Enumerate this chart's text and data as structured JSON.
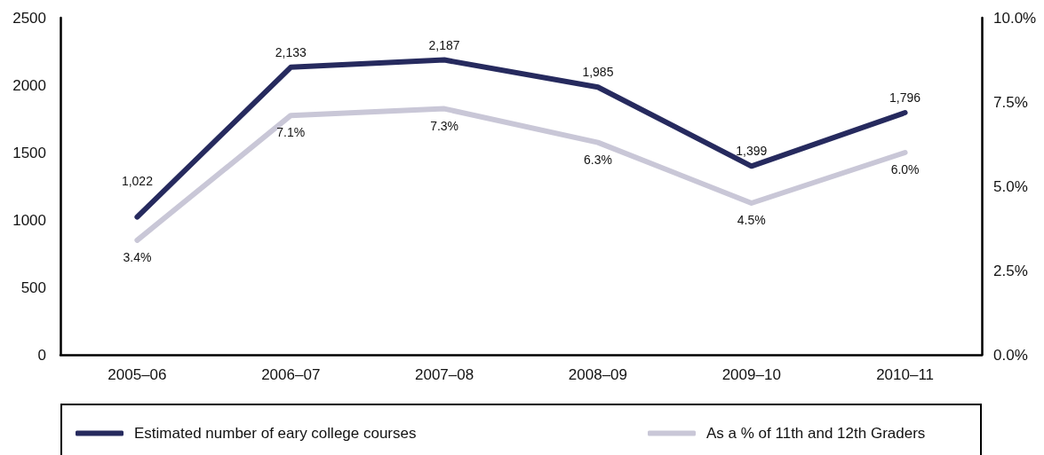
{
  "chart_data": {
    "type": "line",
    "categories": [
      "2005–06",
      "2006–07",
      "2007–08",
      "2008–09",
      "2009–10",
      "2010–11"
    ],
    "series": [
      {
        "name": "Estimated number of eary college courses",
        "color": "#262a5e",
        "values": [
          1022,
          2133,
          2187,
          1985,
          1399,
          1796
        ],
        "value_labels": [
          "1,022",
          "2,133",
          "2,187",
          "1,985",
          "1,399",
          "1,796"
        ]
      },
      {
        "name": "As a % of 11th and 12th Graders",
        "color": "#c9c7d7",
        "axis": "y2",
        "values": [
          3.4,
          7.1,
          7.3,
          6.3,
          4.5,
          6.0
        ],
        "value_labels": [
          "3.4%",
          "7.1%",
          "7.3%",
          "6.3%",
          "4.5%",
          "6.0%"
        ]
      }
    ],
    "ylim": [
      0,
      2500
    ],
    "yticks": [
      0,
      500,
      1000,
      1500,
      2000,
      2500
    ],
    "y2lim": [
      0,
      10
    ],
    "y2ticks": [
      {
        "value": 0,
        "label": "0.0%"
      },
      {
        "value": 2.5,
        "label": "2.5%"
      },
      {
        "value": 5,
        "label": "5.0%"
      },
      {
        "value": 7.5,
        "label": "7.5%"
      },
      {
        "value": 10,
        "label": "10.0%"
      }
    ],
    "legend": "bottom",
    "grid": false,
    "marker": "none",
    "line_style": "solid"
  }
}
